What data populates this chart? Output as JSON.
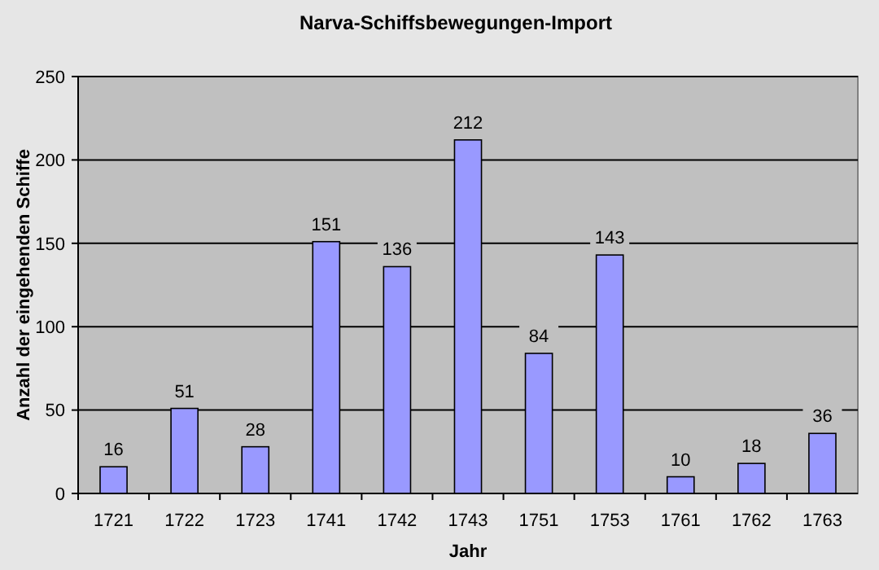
{
  "chart_data": {
    "type": "bar",
    "title": "Narva-Schiffsbewegungen-Import",
    "xlabel": "Jahr",
    "ylabel": "Anzahl der eingehenden Schiffe",
    "categories": [
      "1721",
      "1722",
      "1723",
      "1741",
      "1742",
      "1743",
      "1751",
      "1753",
      "1761",
      "1762",
      "1763"
    ],
    "values": [
      16,
      51,
      28,
      151,
      136,
      212,
      84,
      143,
      10,
      18,
      36
    ],
    "color": "#9999ff",
    "ylim": [
      0,
      250
    ],
    "yticks": [
      0,
      50,
      100,
      150,
      200,
      250
    ],
    "grid": "y",
    "data_labels": true
  }
}
